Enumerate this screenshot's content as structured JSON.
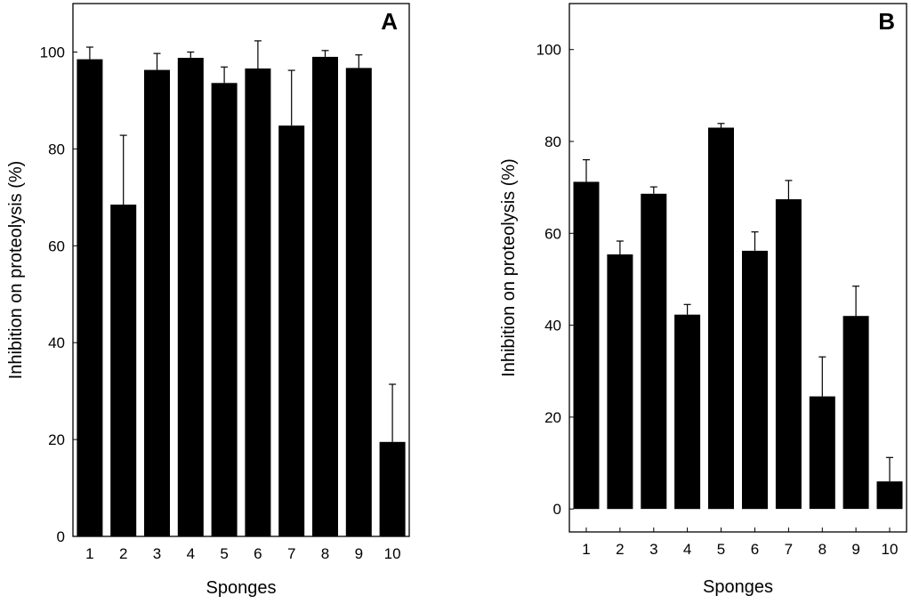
{
  "chart_data": [
    {
      "type": "bar",
      "panel_label": "A",
      "categories": [
        "1",
        "2",
        "3",
        "4",
        "5",
        "6",
        "7",
        "8",
        "9",
        "10"
      ],
      "values": [
        98.5,
        68.5,
        96.3,
        98.8,
        93.6,
        96.6,
        84.8,
        99.0,
        96.7,
        19.5
      ],
      "errors": [
        2.5,
        14.3,
        3.4,
        1.2,
        3.3,
        5.7,
        11.4,
        1.3,
        2.7,
        11.9
      ],
      "xlabel": "Sponges",
      "ylabel": "Inhibition on proteolysis (%)",
      "ylim": [
        0,
        110
      ],
      "yticks": [
        0,
        20,
        40,
        60,
        80,
        100
      ],
      "bar_color": "#000000",
      "grid": false
    },
    {
      "type": "bar",
      "panel_label": "B",
      "categories": [
        "1",
        "2",
        "3",
        "4",
        "5",
        "6",
        "7",
        "8",
        "9",
        "10"
      ],
      "values": [
        71.2,
        55.4,
        68.6,
        42.3,
        83.0,
        56.2,
        67.4,
        24.5,
        42.0,
        6.0
      ],
      "errors": [
        4.8,
        2.9,
        1.5,
        2.2,
        0.9,
        4.1,
        4.1,
        8.6,
        6.5,
        5.2
      ],
      "xlabel": "Sponges",
      "ylabel": "Inhibition on proteolysis (%)",
      "ylim": [
        -5,
        110
      ],
      "yticks": [
        0,
        20,
        40,
        60,
        80,
        100
      ],
      "bar_color": "#000000",
      "grid": false
    }
  ]
}
